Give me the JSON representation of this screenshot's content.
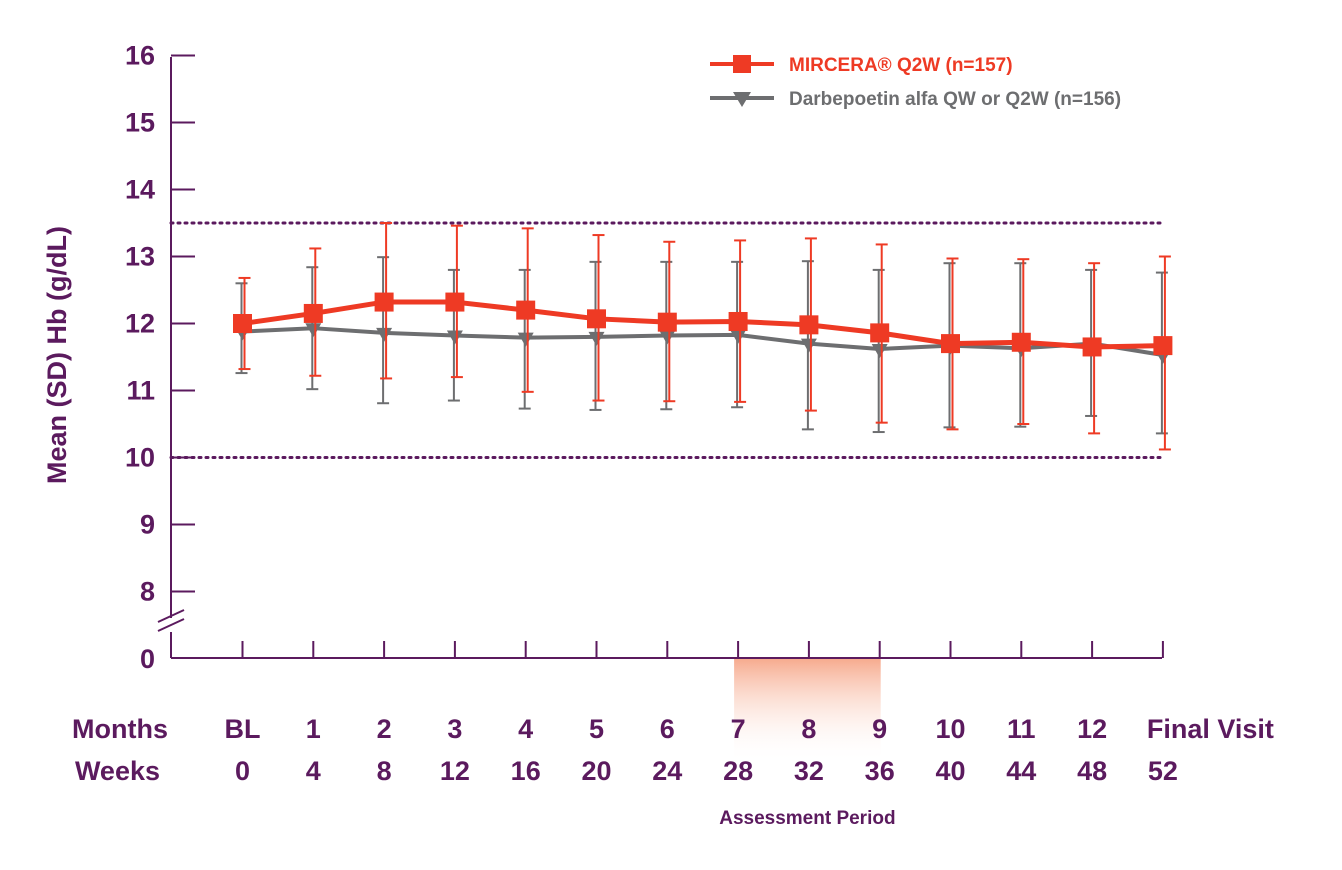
{
  "chart_data": {
    "type": "line",
    "title": "",
    "ylabel": "Mean (SD) Hb (g/dL)",
    "xlabel": "",
    "ylim": [
      8,
      16
    ],
    "y_ticks": [
      16,
      15,
      14,
      13,
      12,
      11,
      10,
      9,
      8
    ],
    "y_break_label": "0",
    "reference_lines": [
      13.5,
      10
    ],
    "row_labels": {
      "months": "Months",
      "weeks": "Weeks"
    },
    "months": [
      "BL",
      "1",
      "2",
      "3",
      "4",
      "5",
      "6",
      "7",
      "8",
      "9",
      "10",
      "11",
      "12",
      "Final Visit"
    ],
    "weeks": [
      "0",
      "4",
      "8",
      "12",
      "16",
      "20",
      "24",
      "28",
      "32",
      "36",
      "40",
      "44",
      "48",
      "52"
    ],
    "assessment_period": {
      "label": "Assessment Period",
      "start_index": 7,
      "end_index": 9
    },
    "series": [
      {
        "name": "MIRCERA® Q2W (n=157)",
        "color": "#ee3a24",
        "marker": "square",
        "values": [
          12.0,
          12.15,
          12.32,
          12.32,
          12.2,
          12.07,
          12.02,
          12.03,
          11.98,
          11.86,
          11.7,
          11.72,
          11.65,
          11.67
        ],
        "upper": [
          12.68,
          13.12,
          13.5,
          13.46,
          13.42,
          13.32,
          13.22,
          13.24,
          13.27,
          13.18,
          12.97,
          12.96,
          12.9,
          13.0
        ],
        "lower": [
          11.32,
          11.22,
          11.18,
          11.2,
          10.98,
          10.85,
          10.84,
          10.83,
          10.7,
          10.52,
          10.42,
          10.5,
          10.36,
          10.12
        ]
      },
      {
        "name": "Darbepoetin alfa QW or Q2W (n=156)",
        "color": "#6d6e70",
        "marker": "triangle-down",
        "values": [
          11.88,
          11.93,
          11.86,
          11.82,
          11.79,
          11.8,
          11.82,
          11.83,
          11.7,
          11.62,
          11.67,
          11.63,
          11.7,
          11.53
        ],
        "upper": [
          12.6,
          12.84,
          12.99,
          12.8,
          12.8,
          12.92,
          12.92,
          12.92,
          12.93,
          12.8,
          12.9,
          12.9,
          12.8,
          12.76
        ],
        "lower": [
          11.26,
          11.02,
          10.81,
          10.85,
          10.73,
          10.71,
          10.72,
          10.75,
          10.42,
          10.38,
          10.45,
          10.46,
          10.62,
          10.36
        ]
      }
    ]
  }
}
